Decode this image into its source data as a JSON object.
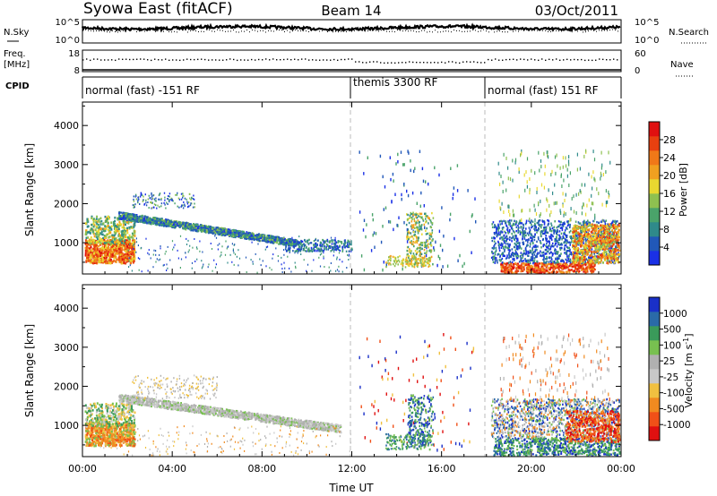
{
  "header": {
    "title": "Syowa East (fitACF)",
    "beam": "Beam 14",
    "date": "03/Oct/2011"
  },
  "sky_panel": {
    "left_label": "N.Sky",
    "right_label": "N.Search",
    "left_ticks": [
      "10^5",
      "10^0"
    ],
    "right_ticks": [
      "10^5",
      "10^0"
    ]
  },
  "freq_panel": {
    "left_label_1": "Freq.",
    "left_label_2": "[MHz]",
    "left_ticks": [
      "18",
      "8"
    ],
    "right_ticks": [
      "60",
      "0"
    ],
    "right_label": "Nave"
  },
  "cpid": {
    "label": "CPID",
    "segments": [
      {
        "name": "normal (fast) -151 RF",
        "start": 0,
        "end": 12
      },
      {
        "name": "themis 3300 RF",
        "start": 12,
        "end": 18
      },
      {
        "name": "normal (fast) 151 RF",
        "start": 18,
        "end": 24
      }
    ]
  },
  "colors": {
    "power_scale": [
      "#1a30e6",
      "#2158b8",
      "#2f8a8a",
      "#4aa36a",
      "#8ec050",
      "#e8d830",
      "#f0a020",
      "#f07818",
      "#e84010",
      "#e01010"
    ],
    "velocity_scale": [
      "#e01010",
      "#f05018",
      "#f08a20",
      "#f0c040",
      "#c8c8c8",
      "#b0b0b0",
      "#78c050",
      "#3a9a5a",
      "#2a6aa8",
      "#1a30c8"
    ]
  },
  "chart_data": [
    {
      "type": "heatmap",
      "name": "power",
      "xlabel": "",
      "ylabel": "Slant Range [km]",
      "x_range": [
        0,
        24
      ],
      "ylim": [
        200,
        4600
      ],
      "y_ticks": [
        "1000",
        "2000",
        "3000",
        "4000"
      ],
      "colorbar_label": "Power [dB]",
      "colorbar_ticks": [
        "4",
        "8",
        "12",
        "16",
        "20",
        "24",
        "28"
      ],
      "colorbar_range": [
        0,
        32
      ]
    },
    {
      "type": "heatmap",
      "name": "velocity",
      "xlabel": "Time UT",
      "ylabel": "Slant Range [km]",
      "x_range": [
        0,
        24
      ],
      "ylim": [
        200,
        4600
      ],
      "x_ticks": [
        "00:00",
        "04:00",
        "08:00",
        "12:00",
        "16:00",
        "20:00",
        "00:00"
      ],
      "y_ticks": [
        "1000",
        "2000",
        "3000",
        "4000"
      ],
      "colorbar_label": "Velocity [m s",
      "colorbar_label_sup": "-1",
      "colorbar_label_end": "]",
      "colorbar_ticks": [
        "1000",
        "500",
        "100",
        "25",
        "-25",
        "-100",
        "-500",
        "-1000"
      ]
    }
  ]
}
